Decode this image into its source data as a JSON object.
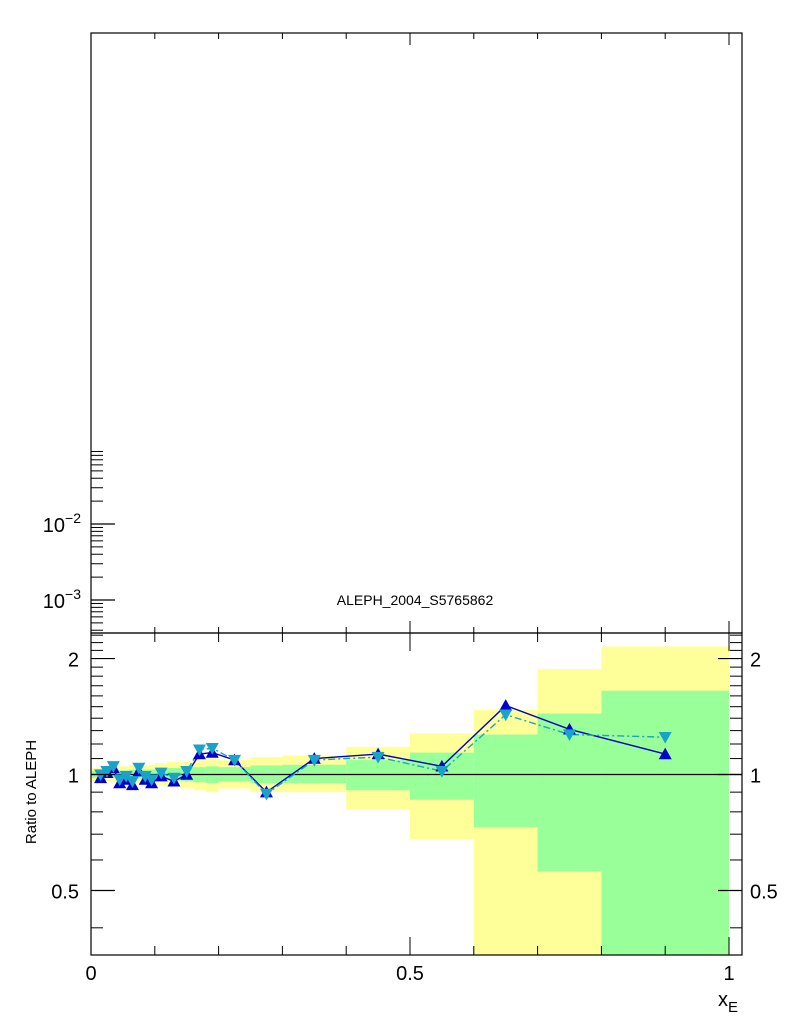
{
  "chart_data": [
    {
      "panel": "main",
      "type": "line",
      "yscale": "log",
      "grid": false,
      "annotation": "ALEPH_2004_S5765862",
      "ytick_labels": [
        {
          "value": 0.01,
          "base": "10",
          "exp": "−2"
        },
        {
          "value": 0.001,
          "base": "10",
          "exp": "−3"
        }
      ]
    },
    {
      "panel": "ratio",
      "type": "line",
      "grid": false,
      "ylabel": "Ratio to ALEPH",
      "xlabel_main": "x",
      "xlabel_sub": "E",
      "xlim": [
        0,
        1.02
      ],
      "ylim": [
        0.34,
        2.33
      ],
      "xticks": [
        {
          "value": 0,
          "label": "0"
        },
        {
          "value": 0.5,
          "label": "0.5"
        },
        {
          "value": 1,
          "label": "1"
        }
      ],
      "yticks": [
        {
          "value": 0.5,
          "label": "0.5"
        },
        {
          "value": 1,
          "label": "1"
        },
        {
          "value": 2,
          "label": "2"
        }
      ],
      "uncertainty_bands": [
        {
          "x0": 0.0,
          "x1": 0.02,
          "yellow": [
            0.96,
            1.04
          ],
          "green": [
            0.98,
            1.02
          ]
        },
        {
          "x0": 0.02,
          "x1": 0.04,
          "yellow": [
            0.96,
            1.04
          ],
          "green": [
            0.98,
            1.02
          ]
        },
        {
          "x0": 0.04,
          "x1": 0.06,
          "yellow": [
            0.95,
            1.05
          ],
          "green": [
            0.975,
            1.025
          ]
        },
        {
          "x0": 0.06,
          "x1": 0.08,
          "yellow": [
            0.95,
            1.06
          ],
          "green": [
            0.975,
            1.03
          ]
        },
        {
          "x0": 0.08,
          "x1": 0.1,
          "yellow": [
            0.94,
            1.06
          ],
          "green": [
            0.97,
            1.03
          ]
        },
        {
          "x0": 0.1,
          "x1": 0.12,
          "yellow": [
            0.94,
            1.07
          ],
          "green": [
            0.97,
            1.035
          ]
        },
        {
          "x0": 0.12,
          "x1": 0.14,
          "yellow": [
            0.93,
            1.08
          ],
          "green": [
            0.965,
            1.04
          ]
        },
        {
          "x0": 0.14,
          "x1": 0.16,
          "yellow": [
            0.92,
            1.08
          ],
          "green": [
            0.96,
            1.04
          ]
        },
        {
          "x0": 0.16,
          "x1": 0.18,
          "yellow": [
            0.91,
            1.09
          ],
          "green": [
            0.955,
            1.045
          ]
        },
        {
          "x0": 0.18,
          "x1": 0.2,
          "yellow": [
            0.9,
            1.1
          ],
          "green": [
            0.95,
            1.05
          ]
        },
        {
          "x0": 0.2,
          "x1": 0.25,
          "yellow": [
            0.92,
            1.09
          ],
          "green": [
            0.96,
            1.045
          ]
        },
        {
          "x0": 0.25,
          "x1": 0.3,
          "yellow": [
            0.9,
            1.11
          ],
          "green": [
            0.95,
            1.055
          ]
        },
        {
          "x0": 0.3,
          "x1": 0.4,
          "yellow": [
            0.9,
            1.12
          ],
          "green": [
            0.95,
            1.06
          ]
        },
        {
          "x0": 0.4,
          "x1": 0.5,
          "yellow": [
            0.81,
            1.18
          ],
          "green": [
            0.91,
            1.09
          ]
        },
        {
          "x0": 0.5,
          "x1": 0.6,
          "yellow": [
            0.68,
            1.28
          ],
          "green": [
            0.86,
            1.14
          ]
        },
        {
          "x0": 0.6,
          "x1": 0.7,
          "yellow": [
            0.34,
            1.47
          ],
          "green": [
            0.73,
            1.27
          ]
        },
        {
          "x0": 0.7,
          "x1": 0.8,
          "yellow": [
            0.34,
            1.88
          ],
          "green": [
            0.56,
            1.44
          ]
        },
        {
          "x0": 0.8,
          "x1": 1.0,
          "yellow": [
            0.34,
            2.15
          ],
          "green": [
            0.34,
            1.65
          ]
        }
      ],
      "series": [
        {
          "marker": "triangle-up",
          "line": "solid",
          "color": "#0000cc",
          "x": [
            0.015,
            0.025,
            0.035,
            0.045,
            0.055,
            0.065,
            0.075,
            0.085,
            0.095,
            0.11,
            0.13,
            0.15,
            0.17,
            0.19,
            0.225,
            0.275,
            0.35,
            0.45,
            0.55,
            0.65,
            0.75,
            0.9
          ],
          "y": [
            0.98,
            1.01,
            1.04,
            0.95,
            0.97,
            0.94,
            1.02,
            0.97,
            0.95,
            0.99,
            0.96,
            1.0,
            1.13,
            1.14,
            1.09,
            0.9,
            1.1,
            1.13,
            1.05,
            1.51,
            1.31,
            1.13
          ]
        },
        {
          "marker": "triangle-down",
          "line": "dash-dot",
          "color": "#1aa3c8",
          "x": [
            0.015,
            0.025,
            0.035,
            0.045,
            0.055,
            0.065,
            0.075,
            0.085,
            0.095,
            0.11,
            0.13,
            0.15,
            0.17,
            0.19,
            0.225,
            0.275,
            0.35,
            0.45,
            0.55,
            0.65,
            0.75,
            0.9
          ],
          "y": [
            1.0,
            1.02,
            1.05,
            0.97,
            0.99,
            0.96,
            1.04,
            0.99,
            0.97,
            1.01,
            0.98,
            1.02,
            1.16,
            1.17,
            1.09,
            0.89,
            1.09,
            1.11,
            1.02,
            1.43,
            1.27,
            1.25
          ]
        }
      ]
    }
  ]
}
